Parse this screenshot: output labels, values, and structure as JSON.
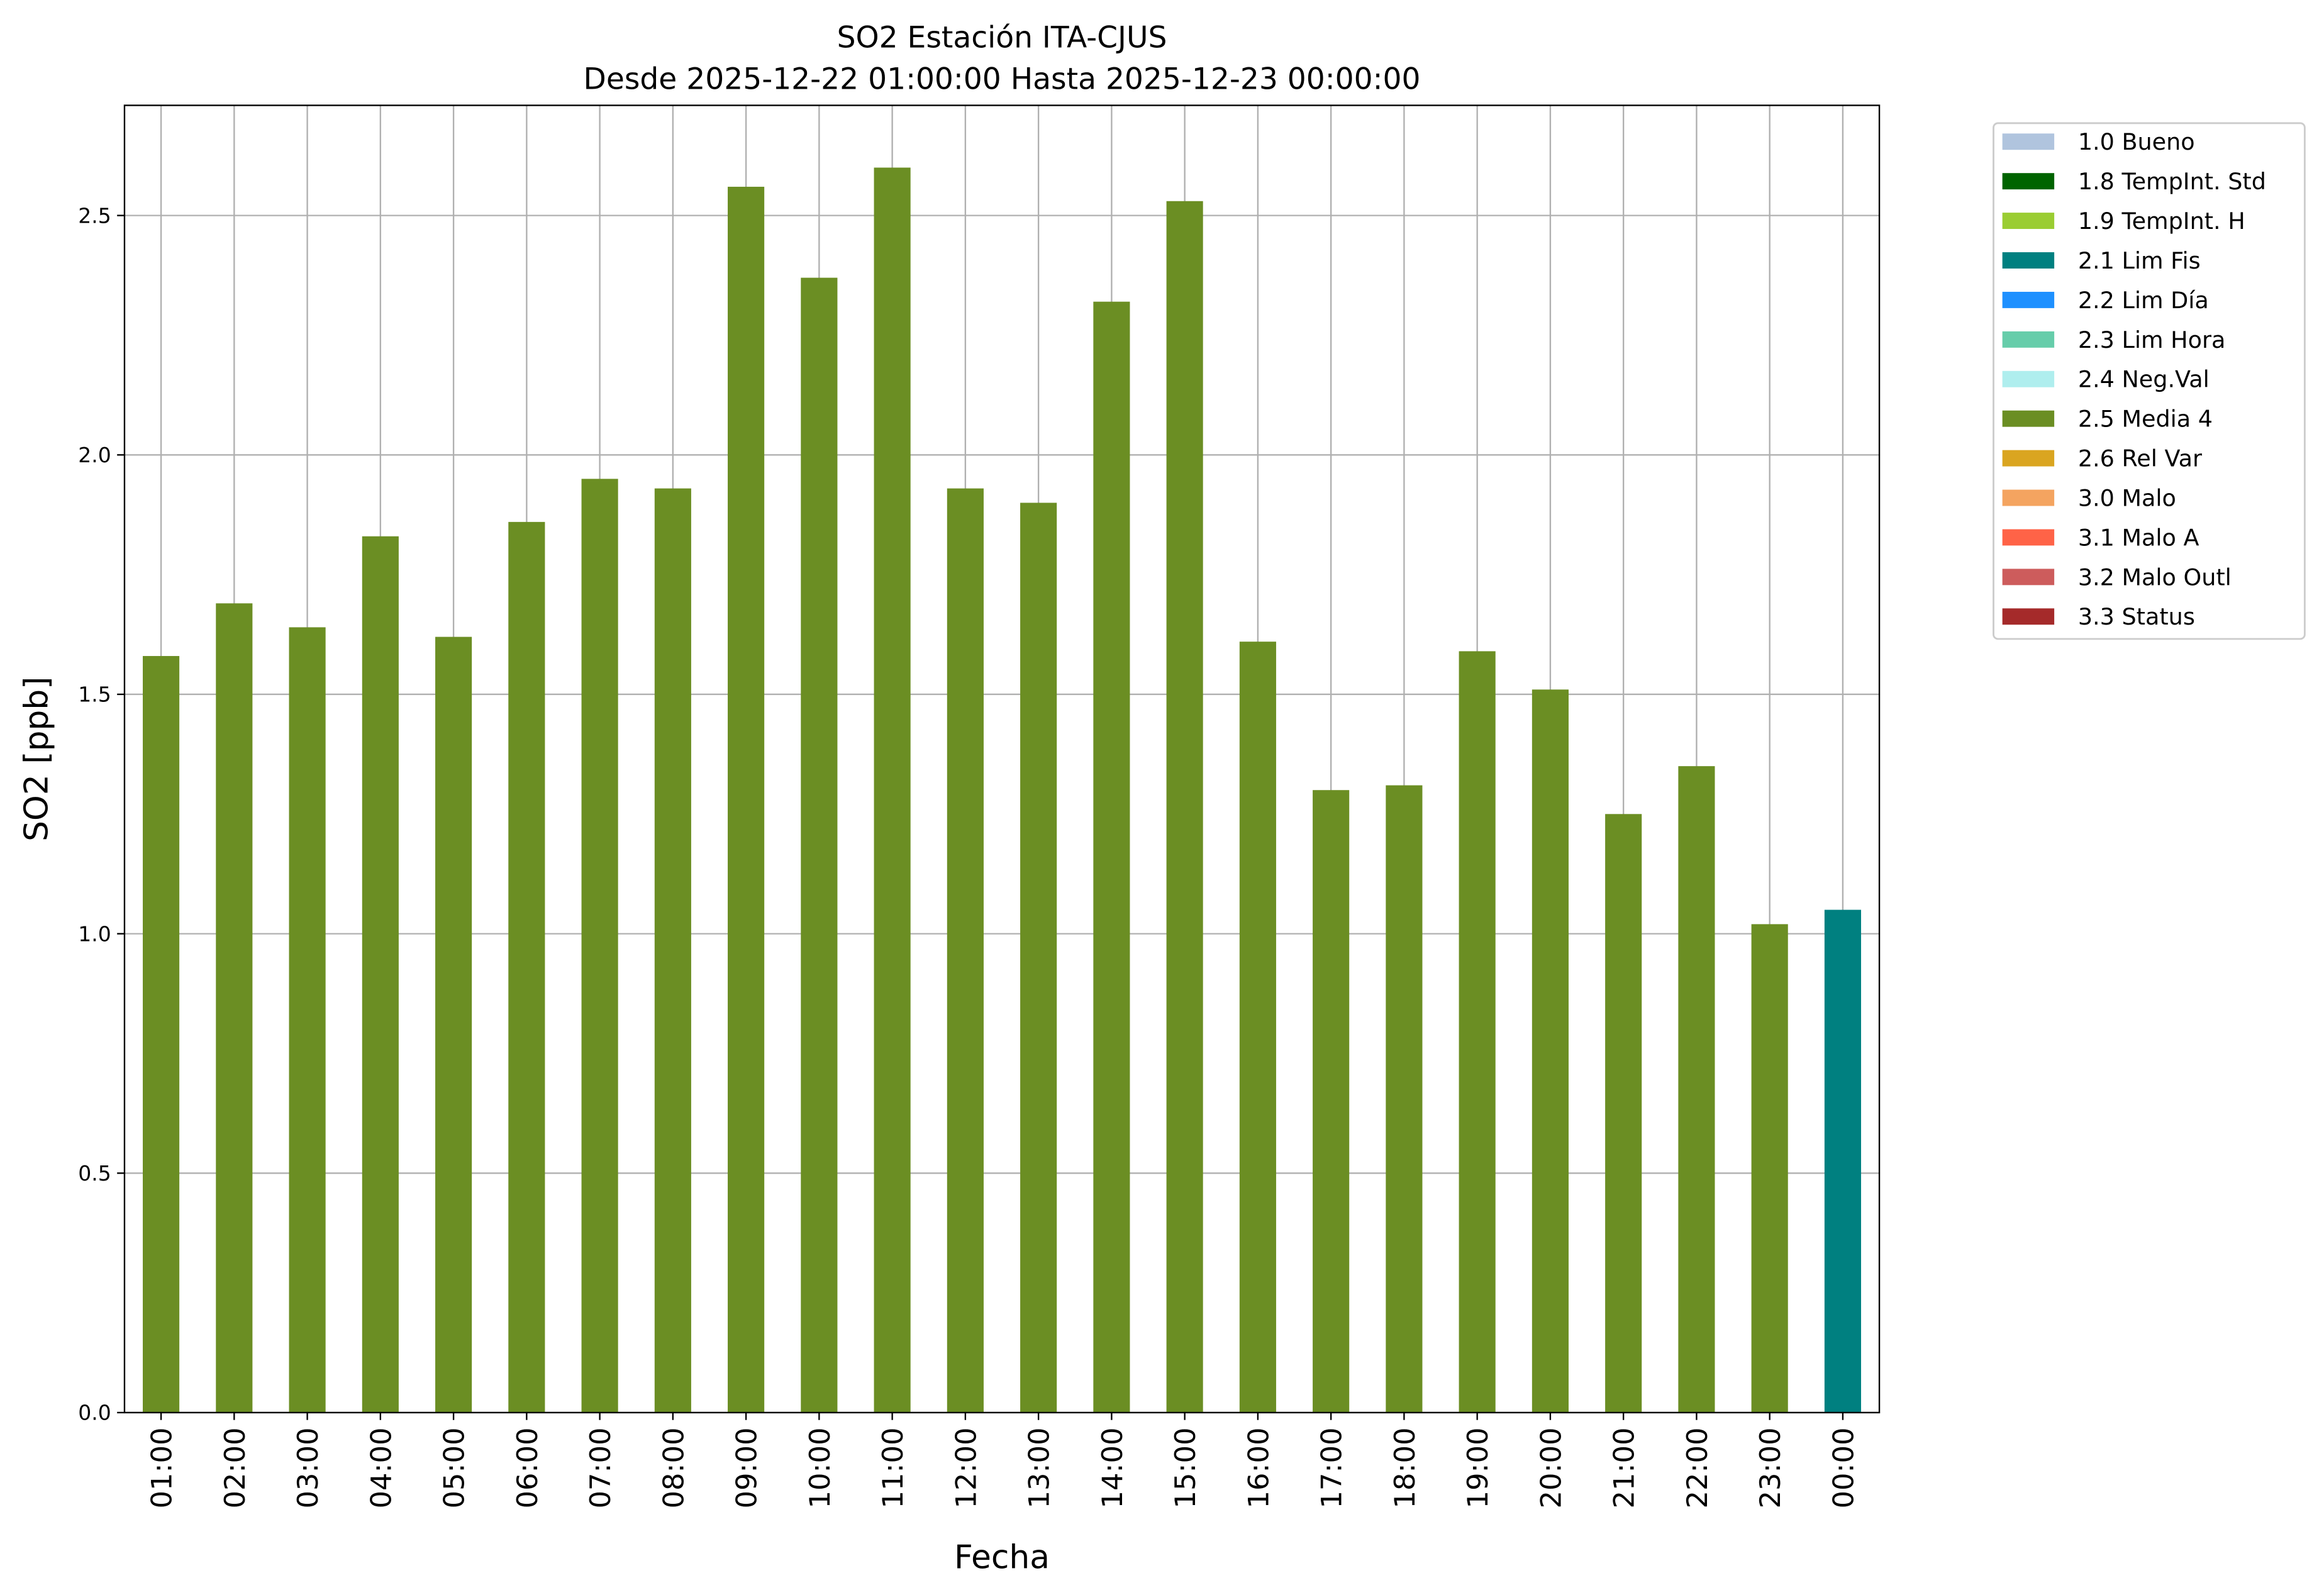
{
  "chart_data": {
    "type": "bar",
    "title_line1": "SO2 Estación ITA-CJUS",
    "title_line2": "Desde 2025-12-22 01:00:00 Hasta 2025-12-23 00:00:00",
    "xlabel": "Fecha",
    "ylabel": "SO2 [ppb]",
    "ylim": [
      0,
      2.73
    ],
    "yticks": [
      "0.0",
      "0.5",
      "1.0",
      "1.5",
      "2.0",
      "2.5"
    ],
    "grid": true,
    "legend_placement": "outside-top-right",
    "categories": [
      "01:00",
      "02:00",
      "03:00",
      "04:00",
      "05:00",
      "06:00",
      "07:00",
      "08:00",
      "09:00",
      "10:00",
      "11:00",
      "12:00",
      "13:00",
      "14:00",
      "15:00",
      "16:00",
      "17:00",
      "18:00",
      "19:00",
      "20:00",
      "21:00",
      "22:00",
      "23:00",
      "00:00"
    ],
    "values": [
      1.58,
      1.69,
      1.64,
      1.83,
      1.62,
      1.86,
      1.95,
      1.93,
      2.56,
      2.37,
      2.6,
      1.93,
      1.9,
      2.32,
      2.53,
      1.61,
      1.3,
      1.31,
      1.59,
      1.51,
      1.25,
      1.35,
      1.02,
      1.05
    ],
    "flags": [
      "2.5",
      "2.5",
      "2.5",
      "2.5",
      "2.5",
      "2.5",
      "2.5",
      "2.5",
      "2.5",
      "2.5",
      "2.5",
      "2.5",
      "2.5",
      "2.5",
      "2.5",
      "2.5",
      "2.5",
      "2.5",
      "2.5",
      "2.5",
      "2.5",
      "2.5",
      "2.5",
      "2.1"
    ],
    "legend": [
      {
        "code": "1.0",
        "label": "1.0 Bueno",
        "color": "#b0c4de"
      },
      {
        "code": "1.8",
        "label": "1.8 TempInt. Std",
        "color": "#006400"
      },
      {
        "code": "1.9",
        "label": "1.9 TempInt. H",
        "color": "#9acd32"
      },
      {
        "code": "2.1",
        "label": "2.1 Lim Fis",
        "color": "#008080"
      },
      {
        "code": "2.2",
        "label": "2.2 Lim Día",
        "color": "#1e90ff"
      },
      {
        "code": "2.3",
        "label": "2.3 Lim Hora",
        "color": "#66cdaa"
      },
      {
        "code": "2.4",
        "label": "2.4 Neg.Val",
        "color": "#afeeee"
      },
      {
        "code": "2.5",
        "label": "2.5 Media 4",
        "color": "#6b8e23"
      },
      {
        "code": "2.6",
        "label": "2.6 Rel Var",
        "color": "#daa520"
      },
      {
        "code": "3.0",
        "label": "3.0 Malo",
        "color": "#f4a460"
      },
      {
        "code": "3.1",
        "label": "3.1 Malo A",
        "color": "#ff6347"
      },
      {
        "code": "3.2",
        "label": "3.2 Malo Outl",
        "color": "#cd5c5c"
      },
      {
        "code": "3.3",
        "label": "3.3 Status",
        "color": "#a52a2a"
      }
    ]
  }
}
